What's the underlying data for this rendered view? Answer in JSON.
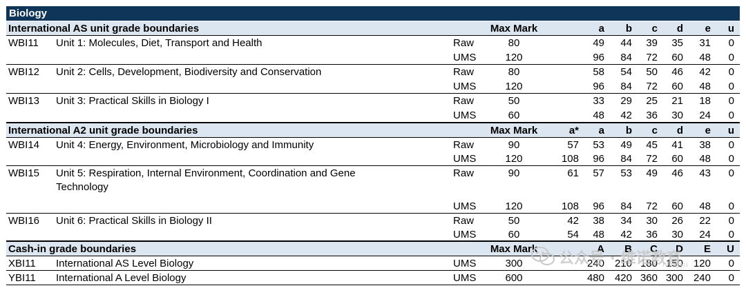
{
  "title": "Biology",
  "sections": [
    {
      "heading": "International AS unit grade boundaries",
      "headers": {
        "max": "Max Mark",
        "astar": "",
        "a": "a",
        "b": "b",
        "c": "c",
        "d": "d",
        "e": "e",
        "u": "u"
      },
      "units": [
        {
          "code": "WBI11",
          "title": "Unit 1: Molecules, Diet, Transport and Health",
          "rows": [
            {
              "type": "Raw",
              "max": "80",
              "astar": "",
              "a": "49",
              "b": "44",
              "c": "39",
              "d": "35",
              "e": "31",
              "u": "0"
            },
            {
              "type": "UMS",
              "max": "120",
              "astar": "",
              "a": "96",
              "b": "84",
              "c": "72",
              "d": "60",
              "e": "48",
              "u": "0"
            }
          ]
        },
        {
          "code": "WBI12",
          "title": "Unit 2: Cells, Development, Biodiversity and Conservation",
          "rows": [
            {
              "type": "Raw",
              "max": "80",
              "astar": "",
              "a": "58",
              "b": "54",
              "c": "50",
              "d": "46",
              "e": "42",
              "u": "0"
            },
            {
              "type": "UMS",
              "max": "120",
              "astar": "",
              "a": "96",
              "b": "84",
              "c": "72",
              "d": "60",
              "e": "48",
              "u": "0"
            }
          ]
        },
        {
          "code": "WBI13",
          "title": "Unit 3: Practical Skills in Biology I",
          "rows": [
            {
              "type": "Raw",
              "max": "50",
              "astar": "",
              "a": "33",
              "b": "29",
              "c": "25",
              "d": "21",
              "e": "18",
              "u": "0"
            },
            {
              "type": "UMS",
              "max": "60",
              "astar": "",
              "a": "48",
              "b": "42",
              "c": "36",
              "d": "30",
              "e": "24",
              "u": "0"
            }
          ]
        }
      ]
    },
    {
      "heading": "International A2 unit grade boundaries",
      "headers": {
        "max": "Max Mark",
        "astar": "a*",
        "a": "a",
        "b": "b",
        "c": "c",
        "d": "d",
        "e": "e",
        "u": "u"
      },
      "units": [
        {
          "code": "WBI14",
          "title": "Unit 4: Energy, Environment, Microbiology and Immunity",
          "rows": [
            {
              "type": "Raw",
              "max": "90",
              "astar": "57",
              "a": "53",
              "b": "49",
              "c": "45",
              "d": "41",
              "e": "38",
              "u": "0"
            },
            {
              "type": "UMS",
              "max": "120",
              "astar": "108",
              "a": "96",
              "b": "84",
              "c": "72",
              "d": "60",
              "e": "48",
              "u": "0"
            }
          ]
        },
        {
          "code": "WBI15",
          "title": "Unit 5: Respiration, Internal Environment, Coordination and Gene",
          "title2": "Technology",
          "rows": [
            {
              "type": "Raw",
              "max": "90",
              "astar": "61",
              "a": "57",
              "b": "53",
              "c": "49",
              "d": "46",
              "e": "43",
              "u": "0"
            },
            {
              "type": "UMS",
              "max": "120",
              "astar": "108",
              "a": "96",
              "b": "84",
              "c": "72",
              "d": "60",
              "e": "48",
              "u": "0"
            }
          ]
        },
        {
          "code": "WBI16",
          "title": "Unit 6: Practical Skills in Biology II",
          "rows": [
            {
              "type": "Raw",
              "max": "50",
              "astar": "42",
              "a": "38",
              "b": "34",
              "c": "30",
              "d": "26",
              "e": "22",
              "u": "0"
            },
            {
              "type": "UMS",
              "max": "60",
              "astar": "54",
              "a": "48",
              "b": "42",
              "c": "36",
              "d": "30",
              "e": "24",
              "u": "0"
            }
          ]
        }
      ]
    },
    {
      "heading": "Cash-in grade boundaries",
      "headers": {
        "max": "Max Mark",
        "astar": "",
        "a": "A",
        "b": "B",
        "c": "C",
        "d": "D",
        "e": "E",
        "u": "U"
      },
      "units": [
        {
          "code": "XBI11",
          "title": "International AS Level Biology",
          "rows": [
            {
              "type": "UMS",
              "max": "300",
              "astar": "",
              "a": "240",
              "b": "210",
              "c": "180",
              "d": "150",
              "e": "120",
              "u": "0"
            }
          ]
        },
        {
          "code": "YBI11",
          "title": "International A Level Biology",
          "rows": [
            {
              "type": "UMS",
              "max": "600",
              "astar": "",
              "a": "480",
              "b": "420",
              "c": "360",
              "d": "300",
              "e": "240",
              "u": "0"
            }
          ]
        }
      ]
    }
  ],
  "watermark": {
    "text": "公众号 · 维诺教育",
    "sub": "nlingyu",
    "icon": "wechat-icon"
  }
}
